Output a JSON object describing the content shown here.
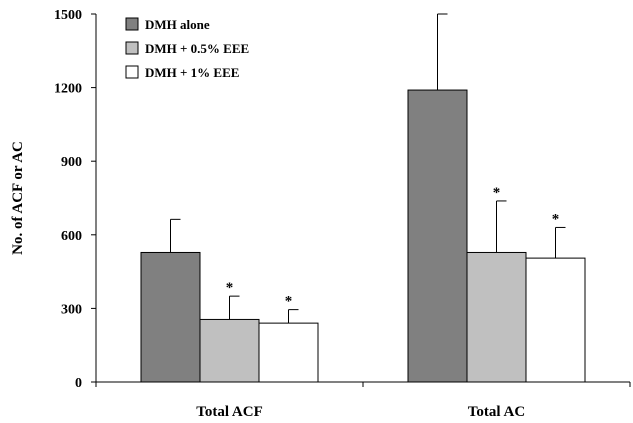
{
  "chart_data": {
    "type": "bar",
    "categories": [
      "Total ACF",
      "Total AC"
    ],
    "series": [
      {
        "name": "DMH alone",
        "color": "#808080",
        "values": [
          528,
          1190
        ],
        "errors": [
          135,
          310
        ],
        "significant": [
          false,
          false
        ]
      },
      {
        "name": "DMH + 0.5% EEE",
        "color": "#c0c0c0",
        "values": [
          255,
          528
        ],
        "errors": [
          95,
          210
        ],
        "significant": [
          true,
          true
        ]
      },
      {
        "name": "DMH + 1% EEE",
        "color": "#ffffff",
        "values": [
          240,
          505
        ],
        "errors": [
          55,
          125
        ],
        "significant": [
          true,
          true
        ]
      }
    ],
    "ylabel": "No. of ACF or AC",
    "xlabel": "",
    "ylim": [
      0,
      1500
    ],
    "yticks": [
      0,
      300,
      600,
      900,
      1200,
      1500
    ],
    "significance_marker": "*",
    "legend_position": "top-left",
    "grid": false
  }
}
